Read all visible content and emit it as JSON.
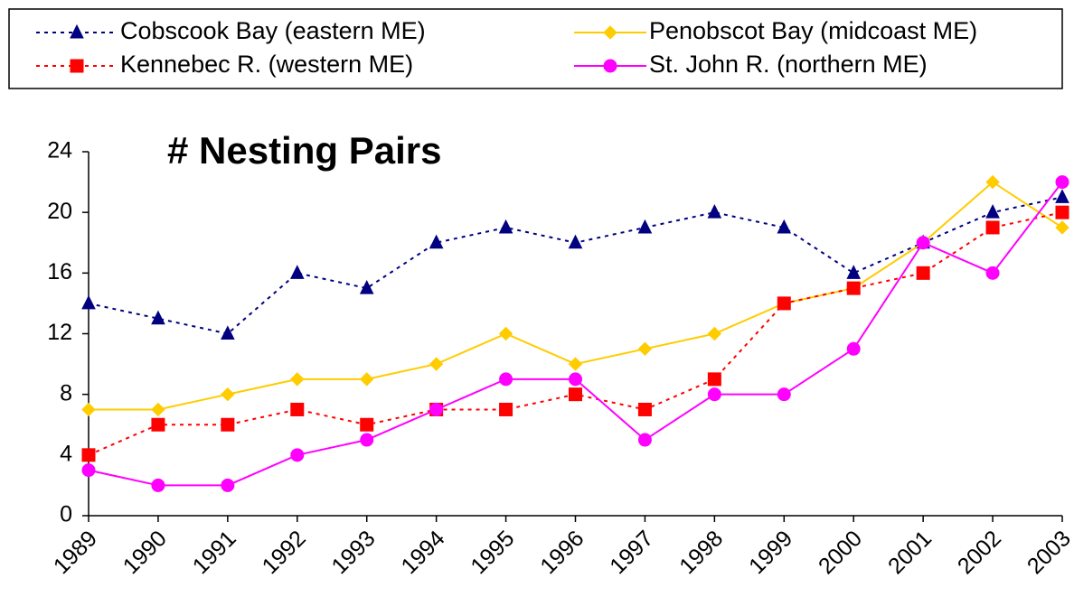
{
  "chart_data": {
    "type": "line",
    "title": "# Nesting Pairs",
    "categories": [
      "1989",
      "1990",
      "1991",
      "1992",
      "1993",
      "1994",
      "1995",
      "1996",
      "1997",
      "1998",
      "1999",
      "2000",
      "2001",
      "2002",
      "2003"
    ],
    "series": [
      {
        "name": "Cobscook Bay (eastern ME)",
        "color": "#000080",
        "marker": "triangle",
        "dashed": true,
        "values": [
          14,
          13,
          12,
          16,
          15,
          18,
          19,
          18,
          19,
          20,
          19,
          16,
          18,
          20,
          21
        ]
      },
      {
        "name": "Penobscot Bay (midcoast ME)",
        "color": "#ffcc00",
        "marker": "diamond",
        "dashed": false,
        "values": [
          7,
          7,
          8,
          9,
          9,
          10,
          12,
          10,
          11,
          12,
          14,
          15,
          18,
          22,
          19
        ]
      },
      {
        "name": "Kennebec R. (western ME)",
        "color": "#ff0000",
        "marker": "square",
        "dashed": true,
        "values": [
          4,
          6,
          6,
          7,
          6,
          7,
          7,
          8,
          7,
          9,
          14,
          15,
          16,
          19,
          20
        ]
      },
      {
        "name": "St. John R. (northern ME)",
        "color": "#ff00ff",
        "marker": "circle",
        "dashed": false,
        "values": [
          3,
          2,
          2,
          4,
          5,
          7,
          9,
          9,
          5,
          8,
          8,
          11,
          18,
          16,
          22
        ]
      }
    ],
    "ylim": [
      0,
      24
    ],
    "yticks": [
      0,
      4,
      8,
      12,
      16,
      20,
      24
    ],
    "grid": false
  }
}
